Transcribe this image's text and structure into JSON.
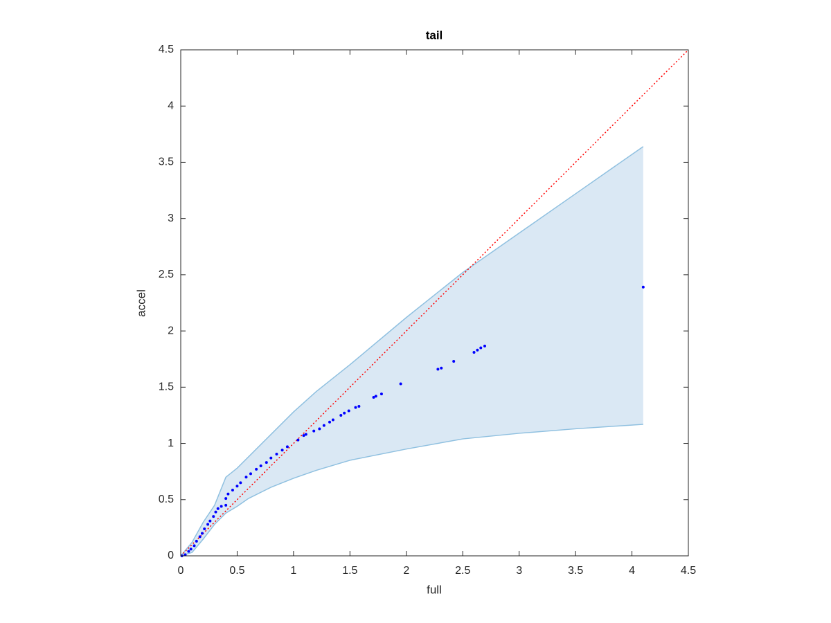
{
  "chart_data": {
    "type": "scatter",
    "title": "tail",
    "x_label": "full",
    "y_label": "accel",
    "xlim": [
      0,
      4.5
    ],
    "ylim": [
      0,
      4.5
    ],
    "xticks": [
      0,
      0.5,
      1,
      1.5,
      2,
      2.5,
      3,
      3.5,
      4,
      4.5
    ],
    "yticks": [
      0,
      0.5,
      1,
      1.5,
      2,
      2.5,
      3,
      3.5,
      4,
      4.5
    ],
    "points": {
      "color": "#0000ff",
      "x": [
        0.01,
        0.04,
        0.07,
        0.09,
        0.12,
        0.14,
        0.17,
        0.19,
        0.21,
        0.24,
        0.26,
        0.29,
        0.31,
        0.33,
        0.36,
        0.4,
        0.4,
        0.42,
        0.46,
        0.5,
        0.53,
        0.58,
        0.62,
        0.67,
        0.71,
        0.76,
        0.8,
        0.85,
        0.9,
        0.945,
        1.04,
        1.09,
        1.11,
        1.18,
        1.23,
        1.27,
        1.32,
        1.35,
        1.42,
        1.45,
        1.49,
        1.55,
        1.58,
        1.71,
        1.73,
        1.78,
        1.95,
        2.28,
        2.31,
        2.42,
        2.6,
        2.63,
        2.66,
        2.695,
        4.1
      ],
      "y": [
        0.0,
        0.01,
        0.04,
        0.06,
        0.09,
        0.13,
        0.17,
        0.2,
        0.24,
        0.28,
        0.31,
        0.35,
        0.39,
        0.42,
        0.44,
        0.45,
        0.51,
        0.55,
        0.585,
        0.62,
        0.65,
        0.7,
        0.73,
        0.77,
        0.8,
        0.83,
        0.87,
        0.905,
        0.94,
        0.97,
        1.03,
        1.07,
        1.08,
        1.11,
        1.13,
        1.16,
        1.19,
        1.21,
        1.25,
        1.27,
        1.29,
        1.32,
        1.33,
        1.41,
        1.42,
        1.44,
        1.53,
        1.66,
        1.67,
        1.73,
        1.81,
        1.83,
        1.85,
        1.866,
        2.39
      ]
    },
    "band": {
      "fill": "#dae8f4",
      "line_color": "#8fc0e0",
      "x": [
        0,
        0.1,
        0.2,
        0.3,
        0.4,
        0.5,
        0.6,
        0.8,
        1.0,
        1.2,
        1.5,
        2.0,
        2.5,
        3.0,
        3.5,
        4.1
      ],
      "upper": [
        0,
        0.12,
        0.3,
        0.45,
        0.7,
        0.78,
        0.88,
        1.08,
        1.28,
        1.46,
        1.7,
        2.12,
        2.52,
        2.87,
        3.22,
        3.64
      ],
      "lower": [
        0,
        0.03,
        0.15,
        0.28,
        0.38,
        0.44,
        0.51,
        0.61,
        0.69,
        0.76,
        0.85,
        0.95,
        1.04,
        1.09,
        1.13,
        1.17
      ]
    },
    "reference_line": {
      "color": "#ff0000",
      "x": [
        0,
        4.5
      ],
      "y": [
        0,
        4.5
      ]
    }
  }
}
